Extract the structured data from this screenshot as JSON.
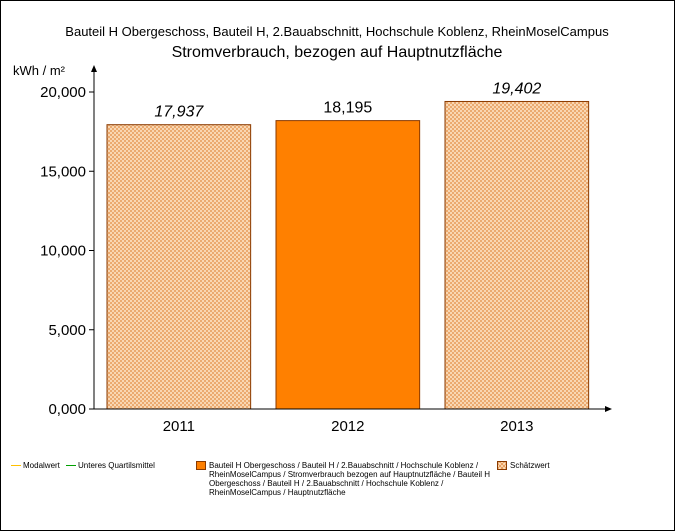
{
  "chart_data": {
    "type": "bar",
    "subtitle": "Bauteil H Obergeschoss, Bauteil H, 2.Bauabschnitt, Hochschule Koblenz, RheinMoselCampus",
    "title": "Stromverbrauch, bezogen auf Hauptnutzfläche",
    "ylabel": "kWh / m²",
    "xlabel": "",
    "ylim": [
      0,
      20
    ],
    "yticks": [
      "0,000",
      "5,000",
      "10,000",
      "15,000",
      "20,000"
    ],
    "categories": [
      "2011",
      "2012",
      "2013"
    ],
    "values": [
      17.937,
      18.195,
      19.402
    ],
    "value_labels": [
      "17,937",
      "18,195",
      "19,402"
    ],
    "estimated": [
      true,
      false,
      true
    ],
    "colors": {
      "measured": "#ff8000",
      "estimated_fill": "#fde3c4",
      "estimated_hatch": "#e8a060",
      "bar_border": "#8a3a00"
    },
    "grid": false,
    "legend_position": "bottom",
    "legend": [
      {
        "label": "Modalwert",
        "kind": "line",
        "color": "#ffc000"
      },
      {
        "label": "Unteres Quartilsmittel",
        "kind": "line",
        "color": "#00a000"
      },
      {
        "label": "Bauteil H Obergeschoss / Bauteil H / 2.Bauabschnitt / Hochschule Koblenz / RheinMoselCampus / Stromverbrauch bezogen auf Hauptnutzfläche / Bauteil H Obergeschoss / Bauteil H / 2.Bauabschnitt / Hochschule Koblenz / RheinMoselCampus / Hauptnutzfläche",
        "kind": "solid"
      },
      {
        "label": "Schätzwert",
        "kind": "hatch"
      }
    ]
  }
}
